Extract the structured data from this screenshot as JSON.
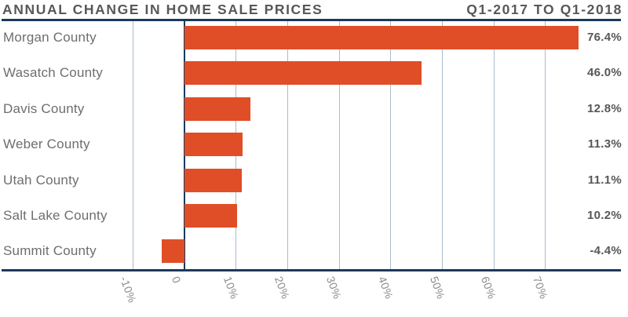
{
  "header": {
    "title": "ANNUAL CHANGE IN HOME SALE PRICES",
    "period": "Q1-2017 TO Q1-2018"
  },
  "chart_data": {
    "type": "bar",
    "orientation": "horizontal",
    "title": "ANNUAL CHANGE IN HOME SALE PRICES",
    "subtitle": "Q1-2017 TO Q1-2018",
    "categories": [
      "Morgan County",
      "Wasatch County",
      "Davis County",
      "Weber County",
      "Utah County",
      "Salt Lake County",
      "Summit County"
    ],
    "values": [
      76.4,
      46.0,
      12.8,
      11.3,
      11.1,
      10.2,
      -4.4
    ],
    "data_labels": [
      "76.4%",
      "46.0%",
      "12.8%",
      "11.3%",
      "11.1%",
      "10.2%",
      "-4.4%"
    ],
    "x_ticks": [
      {
        "value": -10,
        "label": "-10%"
      },
      {
        "value": 0,
        "label": "0"
      },
      {
        "value": 10,
        "label": "10%"
      },
      {
        "value": 20,
        "label": "20%"
      },
      {
        "value": 30,
        "label": "30%"
      },
      {
        "value": 40,
        "label": "40%"
      },
      {
        "value": 50,
        "label": "50%"
      },
      {
        "value": 60,
        "label": "60%"
      },
      {
        "value": 70,
        "label": "70%"
      }
    ],
    "xlim": [
      -10,
      80
    ],
    "grid": true,
    "legend": false
  },
  "colors": {
    "bar": "#E04E27",
    "navy_line": "#1B3A5B",
    "gridline": "#A9BCCC",
    "title_text": "#57585B",
    "category_text": "#6D6E71",
    "value_text": "#565759",
    "tick_text": "#8A8C8F"
  }
}
